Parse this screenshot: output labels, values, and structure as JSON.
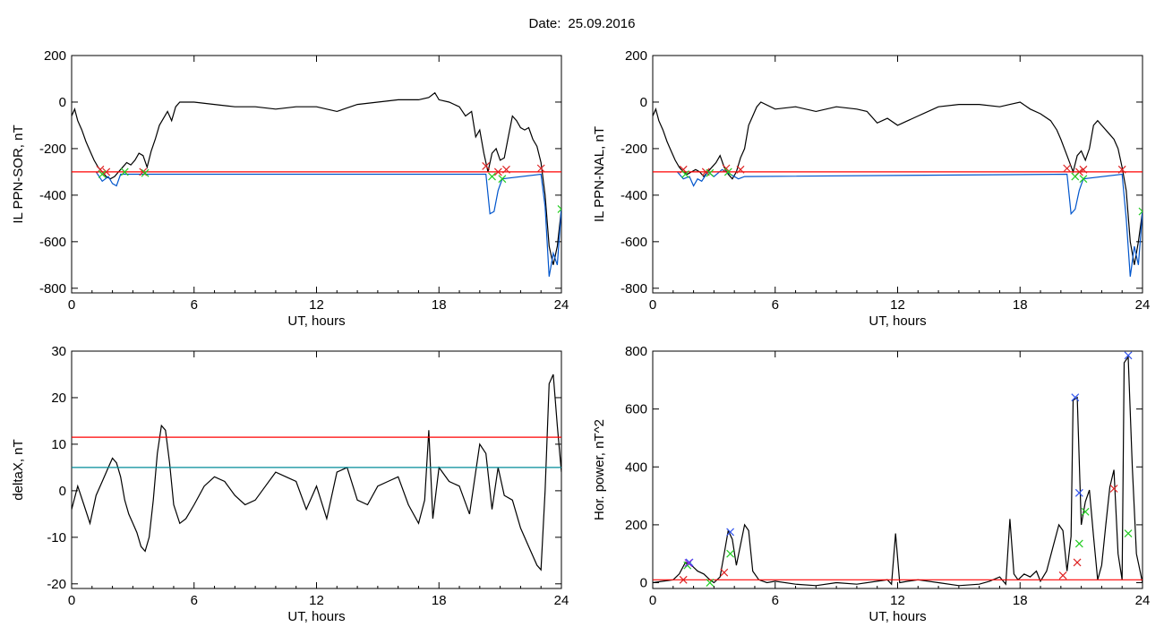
{
  "page": {
    "title_label": "Date:",
    "title_value": "25.09.2016"
  },
  "chart_data": [
    {
      "id": "p1",
      "type": "line",
      "xlabel": "UT, hours",
      "ylabel": "IL PPN-SOR, nT",
      "xlim": [
        0,
        24
      ],
      "ylim": [
        -820,
        200
      ],
      "xticks": [
        0,
        6,
        12,
        18,
        24
      ],
      "yticks": [
        -800,
        -600,
        -400,
        -200,
        0,
        200
      ],
      "grid": false,
      "series": [
        {
          "color": "#000000",
          "x": [
            0,
            0.15,
            0.3,
            0.5,
            0.7,
            0.9,
            1.1,
            1.3,
            1.5,
            1.7,
            1.9,
            2.1,
            2.3,
            2.5,
            2.7,
            2.9,
            3.1,
            3.3,
            3.5,
            3.7,
            3.9,
            4.1,
            4.3,
            4.5,
            4.7,
            4.9,
            5.1,
            5.3,
            6,
            7,
            8,
            9,
            10,
            11,
            12,
            13,
            14,
            15,
            16,
            17,
            17.5,
            17.8,
            18,
            18.5,
            19,
            19.3,
            19.6,
            19.8,
            20,
            20.2,
            20.4,
            20.6,
            20.8,
            21,
            21.2,
            21.4,
            21.6,
            21.8,
            22,
            22.2,
            22.4,
            22.6,
            22.8,
            23,
            23.2,
            23.4,
            23.6,
            23.8,
            24
          ],
          "y": [
            -60,
            -30,
            -80,
            -120,
            -170,
            -210,
            -250,
            -280,
            -300,
            -320,
            -330,
            -320,
            -300,
            -280,
            -260,
            -270,
            -250,
            -220,
            -230,
            -280,
            -210,
            -160,
            -100,
            -70,
            -40,
            -80,
            -20,
            0,
            0,
            -10,
            -20,
            -20,
            -30,
            -20,
            -20,
            -40,
            -10,
            0,
            10,
            10,
            20,
            40,
            10,
            0,
            -20,
            -60,
            -40,
            -150,
            -120,
            -220,
            -300,
            -220,
            -200,
            -250,
            -240,
            -150,
            -60,
            -80,
            -110,
            -120,
            -110,
            -160,
            -190,
            -260,
            -400,
            -620,
            -700,
            -620,
            -460
          ]
        },
        {
          "color": "#0055cc",
          "x": [
            1.2,
            1.5,
            1.8,
            2.0,
            2.2,
            2.4,
            20.3,
            20.5,
            20.7,
            20.9,
            21.1,
            23.0,
            23.2,
            23.4,
            23.6,
            23.8,
            24
          ],
          "y": [
            -300,
            -340,
            -320,
            -350,
            -360,
            -310,
            -310,
            -480,
            -470,
            -380,
            -330,
            -310,
            -450,
            -750,
            -650,
            -700,
            -460
          ]
        },
        {
          "color": "#ff0000",
          "x": [
            0,
            24
          ],
          "y": [
            -300,
            -300
          ]
        }
      ],
      "markers": [
        {
          "color": "#dd2222",
          "x": [
            1.4,
            1.7,
            3.5,
            20.3,
            20.9,
            21.3,
            23.0
          ],
          "y": [
            -290,
            -300,
            -300,
            -275,
            -300,
            -290,
            -285
          ]
        },
        {
          "color": "#22cc22",
          "x": [
            1.5,
            2.6,
            3.6,
            20.6,
            21.1,
            24
          ],
          "y": [
            -310,
            -300,
            -305,
            -320,
            -330,
            -460
          ]
        }
      ]
    },
    {
      "id": "p2",
      "type": "line",
      "xlabel": "UT, hours",
      "ylabel": "IL PPN-NAL, nT",
      "xlim": [
        0,
        24
      ],
      "ylim": [
        -820,
        200
      ],
      "xticks": [
        0,
        6,
        12,
        18,
        24
      ],
      "yticks": [
        -800,
        -600,
        -400,
        -200,
        0,
        200
      ],
      "grid": false,
      "series": [
        {
          "color": "#000000",
          "x": [
            0,
            0.15,
            0.3,
            0.5,
            0.7,
            0.9,
            1.1,
            1.3,
            1.5,
            1.7,
            1.9,
            2.1,
            2.3,
            2.5,
            2.7,
            2.9,
            3.1,
            3.3,
            3.5,
            3.7,
            3.9,
            4.1,
            4.3,
            4.5,
            4.7,
            4.9,
            5.1,
            5.3,
            6,
            7,
            8,
            9,
            10,
            10.5,
            11,
            11.5,
            12,
            12.5,
            13,
            14,
            15,
            16,
            17,
            17.5,
            18,
            18.5,
            19,
            19.5,
            19.8,
            20,
            20.3,
            20.6,
            20.8,
            21,
            21.2,
            21.4,
            21.6,
            21.8,
            22,
            22.3,
            22.6,
            22.8,
            23,
            23.2,
            23.4,
            23.6,
            23.8,
            24
          ],
          "y": [
            -60,
            -30,
            -80,
            -120,
            -170,
            -210,
            -250,
            -280,
            -300,
            -310,
            -300,
            -290,
            -300,
            -320,
            -300,
            -280,
            -260,
            -230,
            -280,
            -310,
            -330,
            -300,
            -240,
            -200,
            -100,
            -60,
            -20,
            0,
            -30,
            -20,
            -40,
            -20,
            -30,
            -40,
            -90,
            -70,
            -100,
            -80,
            -60,
            -20,
            -10,
            -10,
            -20,
            -10,
            0,
            -30,
            -50,
            -80,
            -120,
            -160,
            -230,
            -300,
            -230,
            -210,
            -250,
            -200,
            -100,
            -80,
            -100,
            -130,
            -160,
            -200,
            -280,
            -380,
            -600,
            -700,
            -600,
            -470
          ]
        },
        {
          "color": "#0055cc",
          "x": [
            1.2,
            1.5,
            1.8,
            2.0,
            2.2,
            2.4,
            2.7,
            3.0,
            3.4,
            3.8,
            4.2,
            4.5,
            20.3,
            20.5,
            20.7,
            20.9,
            21.1,
            23.0,
            23.2,
            23.4,
            23.6,
            23.8,
            24
          ],
          "y": [
            -300,
            -330,
            -320,
            -360,
            -330,
            -340,
            -300,
            -320,
            -290,
            -310,
            -330,
            -320,
            -310,
            -480,
            -460,
            -380,
            -330,
            -310,
            -500,
            -750,
            -620,
            -700,
            -470
          ]
        },
        {
          "color": "#ff0000",
          "x": [
            0,
            24
          ],
          "y": [
            -300,
            -300
          ]
        }
      ],
      "markers": [
        {
          "color": "#dd2222",
          "x": [
            1.5,
            2.6,
            3.6,
            4.3,
            20.3,
            20.9,
            21.1,
            23.0
          ],
          "y": [
            -290,
            -300,
            -285,
            -290,
            -285,
            -300,
            -290,
            -290
          ]
        },
        {
          "color": "#22cc22",
          "x": [
            1.6,
            2.8,
            3.7,
            20.7,
            21.1,
            24
          ],
          "y": [
            -310,
            -305,
            -300,
            -320,
            -330,
            -470
          ]
        }
      ]
    },
    {
      "id": "p3",
      "type": "line",
      "xlabel": "UT, hours",
      "ylabel": "deltaX, nT",
      "xlim": [
        0,
        24
      ],
      "ylim": [
        -21,
        30
      ],
      "xticks": [
        0,
        6,
        12,
        18,
        24
      ],
      "yticks": [
        -20,
        -10,
        0,
        10,
        20,
        30
      ],
      "grid": false,
      "series": [
        {
          "color": "#000000",
          "x": [
            0,
            0.3,
            0.6,
            0.9,
            1.2,
            1.5,
            1.8,
            2.0,
            2.2,
            2.4,
            2.6,
            2.8,
            3.0,
            3.2,
            3.4,
            3.6,
            3.8,
            4.0,
            4.2,
            4.4,
            4.6,
            4.8,
            5.0,
            5.3,
            5.6,
            6.0,
            6.5,
            7.0,
            7.5,
            8,
            8.5,
            9,
            9.5,
            10,
            10.5,
            11,
            11.5,
            12,
            12.5,
            13,
            13.5,
            14,
            14.5,
            15,
            15.5,
            16,
            16.5,
            17,
            17.3,
            17.5,
            17.7,
            18,
            18.5,
            19,
            19.5,
            20,
            20.3,
            20.6,
            20.9,
            21.2,
            21.6,
            22,
            22.4,
            22.8,
            23.0,
            23.2,
            23.4,
            23.6,
            23.8,
            24
          ],
          "y": [
            -4,
            1,
            -3,
            -7,
            -1,
            2,
            5,
            7,
            6,
            3,
            -2,
            -5,
            -7,
            -9,
            -12,
            -13,
            -10,
            -2,
            8,
            14,
            13,
            6,
            -3,
            -7,
            -6,
            -3,
            1,
            3,
            2,
            -1,
            -3,
            -2,
            1,
            4,
            3,
            2,
            -4,
            1,
            -6,
            4,
            5,
            -2,
            -3,
            1,
            2,
            3,
            -3,
            -7,
            -2,
            13,
            -6,
            5,
            2,
            1,
            -5,
            10,
            8,
            -4,
            5,
            -1,
            -2,
            -8,
            -12,
            -16,
            -17,
            0,
            23,
            25,
            14,
            4
          ]
        },
        {
          "color": "#ff0000",
          "x": [
            0,
            24
          ],
          "y": [
            11.5,
            11.5
          ]
        },
        {
          "color": "#008b9a",
          "x": [
            0,
            24
          ],
          "y": [
            5,
            5
          ]
        }
      ],
      "markers": []
    },
    {
      "id": "p4",
      "type": "line",
      "xlabel": "UT, hours",
      "ylabel": "Hor. power, nT^2",
      "xlim": [
        0,
        24
      ],
      "ylim": [
        -20,
        800
      ],
      "xticks": [
        0,
        6,
        12,
        18,
        24
      ],
      "yticks": [
        0,
        200,
        400,
        600,
        800
      ],
      "grid": false,
      "series": [
        {
          "color": "#000000",
          "x": [
            0,
            0.5,
            1.0,
            1.3,
            1.6,
            1.9,
            2.2,
            2.5,
            2.8,
            3.0,
            3.3,
            3.5,
            3.7,
            3.9,
            4.1,
            4.3,
            4.5,
            4.7,
            4.9,
            5.2,
            5.6,
            6,
            7,
            8,
            9,
            10,
            11,
            11.5,
            11.7,
            11.9,
            12.1,
            12.5,
            13,
            14,
            15,
            16,
            16.5,
            17,
            17.3,
            17.5,
            17.7,
            17.9,
            18.2,
            18.5,
            18.8,
            19.0,
            19.3,
            19.6,
            19.9,
            20.1,
            20.3,
            20.5,
            20.6,
            20.8,
            21.0,
            21.2,
            21.4,
            21.6,
            21.8,
            22,
            22.2,
            22.4,
            22.6,
            22.8,
            23.0,
            23.1,
            23.3,
            23.5,
            23.7,
            24
          ],
          "y": [
            0,
            5,
            10,
            30,
            70,
            60,
            40,
            30,
            10,
            0,
            20,
            100,
            180,
            150,
            60,
            130,
            200,
            180,
            40,
            10,
            0,
            5,
            -5,
            -10,
            0,
            -5,
            5,
            10,
            -5,
            170,
            0,
            5,
            10,
            0,
            -10,
            -5,
            5,
            20,
            -5,
            220,
            30,
            10,
            30,
            20,
            40,
            5,
            40,
            120,
            200,
            180,
            40,
            160,
            630,
            640,
            200,
            280,
            320,
            160,
            10,
            60,
            200,
            330,
            390,
            100,
            10,
            760,
            780,
            400,
            100,
            0
          ]
        },
        {
          "color": "#ff0000",
          "x": [
            0,
            24
          ],
          "y": [
            10,
            10
          ]
        }
      ],
      "markers": [
        {
          "color": "#dd2222",
          "x": [
            1.5,
            3.5,
            20.1,
            20.8,
            22.6
          ],
          "y": [
            10,
            35,
            25,
            70,
            325
          ]
        },
        {
          "color": "#22cc22",
          "x": [
            1.7,
            2.8,
            3.8,
            20.9,
            21.2,
            23.3
          ],
          "y": [
            60,
            0,
            100,
            135,
            245,
            170
          ]
        },
        {
          "color": "#3355ee",
          "x": [
            1.8,
            3.8,
            20.7,
            20.9,
            23.3
          ],
          "y": [
            70,
            175,
            640,
            310,
            785
          ]
        },
        {
          "color": "#8a2be2",
          "x": [
            1.75
          ],
          "y": [
            68
          ]
        }
      ]
    }
  ]
}
